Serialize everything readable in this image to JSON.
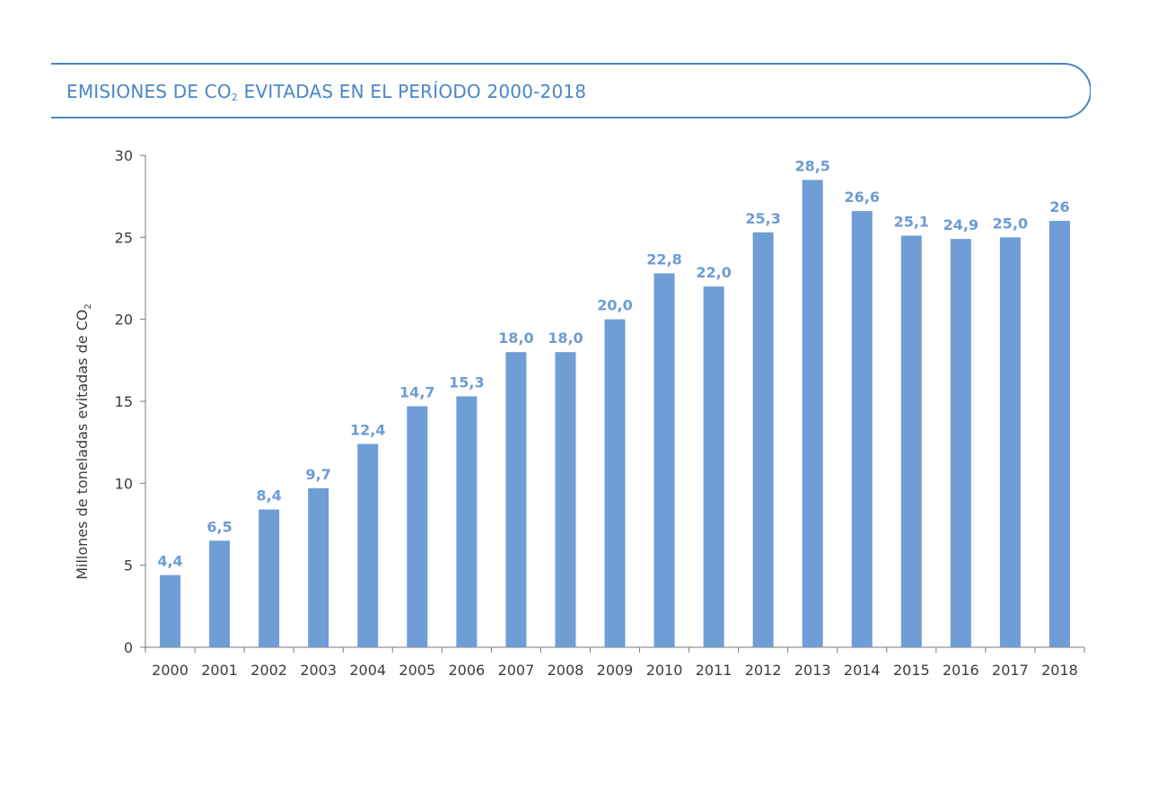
{
  "colors": {
    "accent": "#4a86c5",
    "bar": "#6f9dd5",
    "label": "#6d9bd3",
    "axis": "#7a7a7a",
    "axis_text": "#3c3c3c"
  },
  "title": {
    "pre": "EMISIONES DE CO",
    "sub": "2",
    "post": " EVITADAS EN EL PERÍODO 2000-2018"
  },
  "chart_data": {
    "type": "bar",
    "categories": [
      "2000",
      "2001",
      "2002",
      "2003",
      "2004",
      "2005",
      "2006",
      "2007",
      "2008",
      "2009",
      "2010",
      "2011",
      "2012",
      "2013",
      "2014",
      "2015",
      "2016",
      "2017",
      "2018"
    ],
    "values": [
      4.4,
      6.5,
      8.4,
      9.7,
      12.4,
      14.7,
      15.3,
      18.0,
      18.0,
      20.0,
      22.8,
      22.0,
      25.3,
      28.5,
      26.6,
      25.1,
      24.9,
      25.0,
      26
    ],
    "data_labels": [
      "4,4",
      "6,5",
      "8,4",
      "9,7",
      "12,4",
      "14,7",
      "15,3",
      "18,0",
      "18,0",
      "20,0",
      "22,8",
      "22,0",
      "25,3",
      "28,5",
      "26,6",
      "25,1",
      "24,9",
      "25,0",
      "26"
    ],
    "ylabel_pre": "Millones de toneladas evitadas de CO",
    "ylabel_sub": "2",
    "xlabel": "",
    "ylim": [
      0,
      30
    ],
    "yticks": [
      0,
      5,
      10,
      15,
      20,
      25,
      30
    ],
    "grid": false,
    "legend": "none"
  }
}
